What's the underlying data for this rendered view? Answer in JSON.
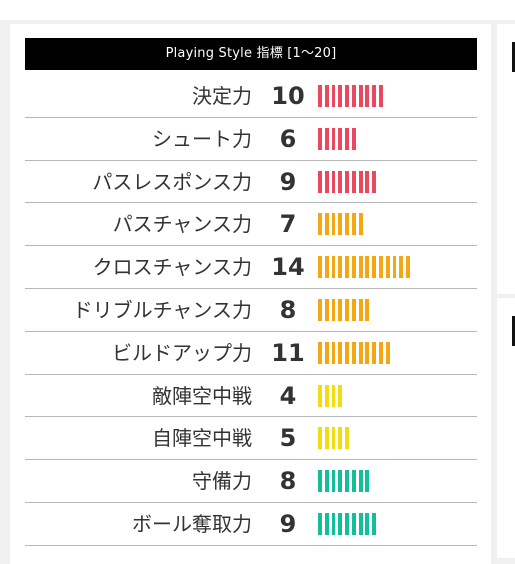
{
  "header": {
    "title": "Playing Style 指標 [1〜20]"
  },
  "colors": {
    "red": "#e8495f",
    "orange": "#f5a614",
    "yellow": "#f3dd12",
    "green": "#13bf9a"
  },
  "stats": [
    {
      "label": "決定力",
      "value": "10",
      "level": 10,
      "color": "red"
    },
    {
      "label": "シュート力",
      "value": "6",
      "level": 6,
      "color": "red"
    },
    {
      "label": "パスレスポンス力",
      "value": "9",
      "level": 9,
      "color": "red"
    },
    {
      "label": "パスチャンス力",
      "value": "7",
      "level": 7,
      "color": "orange"
    },
    {
      "label": "クロスチャンス力",
      "value": "14",
      "level": 14,
      "color": "orange"
    },
    {
      "label": "ドリブルチャンス力",
      "value": "8",
      "level": 8,
      "color": "orange"
    },
    {
      "label": "ビルドアップ力",
      "value": "11",
      "level": 11,
      "color": "orange"
    },
    {
      "label": "敵陣空中戦",
      "value": "4",
      "level": 4,
      "color": "yellow"
    },
    {
      "label": "自陣空中戦",
      "value": "5",
      "level": 5,
      "color": "yellow"
    },
    {
      "label": "守備力",
      "value": "8",
      "level": 8,
      "color": "green"
    },
    {
      "label": "ボール奪取力",
      "value": "9",
      "level": 9,
      "color": "green"
    }
  ]
}
